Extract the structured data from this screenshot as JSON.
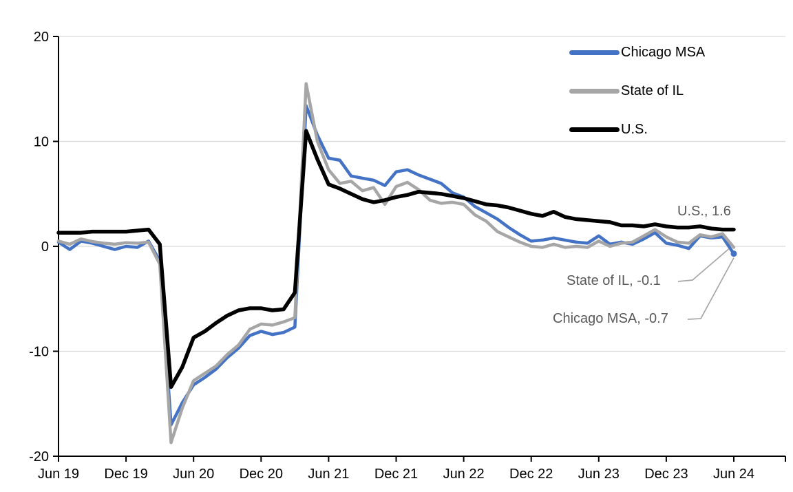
{
  "chart_data": {
    "type": "line",
    "title": "",
    "x_start_label": "Jun 19",
    "x_end_label": "Jun 24",
    "x_tick_labels": [
      "Jun 19",
      "Dec 19",
      "Jun 20",
      "Dec 20",
      "Jun 21",
      "Dec 21",
      "Jun 22",
      "Dec 22",
      "Jun 23",
      "Dec 23",
      "Jun 24"
    ],
    "points_per_tick": 6,
    "frequency": "monthly",
    "ylim": [
      -20,
      20
    ],
    "yticks": [
      20,
      10,
      0,
      -10,
      -20
    ],
    "grid_color": "#D9D9D9",
    "axis_color": "#000000",
    "annotation_color": "#595959",
    "leader_line_color": "#A6A6A6",
    "legend_position": "top-right-vertical",
    "series": [
      {
        "name": "Chicago MSA",
        "color": "#4472C4",
        "end_value": -0.7,
        "values": [
          0.4,
          -0.3,
          0.5,
          0.3,
          0.0,
          -0.3,
          0.0,
          -0.1,
          0.5,
          -1.4,
          -17.0,
          -14.9,
          -13.2,
          -12.5,
          -11.7,
          -10.6,
          -9.7,
          -8.5,
          -8.1,
          -8.4,
          -8.2,
          -7.7,
          13.4,
          10.6,
          8.4,
          8.2,
          6.7,
          6.5,
          6.3,
          5.8,
          7.1,
          7.3,
          6.8,
          6.4,
          6.0,
          5.1,
          4.7,
          3.8,
          3.2,
          2.6,
          1.8,
          1.1,
          0.5,
          0.6,
          0.8,
          0.6,
          0.4,
          0.3,
          1.0,
          0.2,
          0.4,
          0.2,
          0.7,
          1.3,
          0.3,
          0.1,
          -0.2,
          1.0,
          0.8,
          0.9,
          -0.7
        ]
      },
      {
        "name": "State of IL",
        "color": "#A6A6A6",
        "end_value": -0.1,
        "values": [
          0.5,
          0.2,
          0.7,
          0.45,
          0.3,
          0.2,
          0.35,
          0.3,
          0.4,
          -1.7,
          -18.7,
          -15.4,
          -12.8,
          -12.1,
          -11.4,
          -10.3,
          -9.4,
          -7.9,
          -7.4,
          -7.5,
          -7.2,
          -6.8,
          15.5,
          10.0,
          7.3,
          6.0,
          6.2,
          5.3,
          5.6,
          4.0,
          5.7,
          6.1,
          5.4,
          4.4,
          4.1,
          4.2,
          4.0,
          3.0,
          2.4,
          1.4,
          0.9,
          0.4,
          0.0,
          -0.1,
          0.2,
          -0.1,
          0.0,
          -0.1,
          0.5,
          0.0,
          0.3,
          0.4,
          1.0,
          1.6,
          0.9,
          0.4,
          0.3,
          1.1,
          0.9,
          1.2,
          -0.1
        ]
      },
      {
        "name": "U.S.",
        "color": "#000000",
        "end_value": 1.6,
        "values": [
          1.3,
          1.3,
          1.3,
          1.4,
          1.4,
          1.4,
          1.4,
          1.5,
          1.6,
          0.2,
          -13.4,
          -11.5,
          -8.7,
          -8.1,
          -7.3,
          -6.6,
          -6.1,
          -5.9,
          -5.9,
          -6.1,
          -6.0,
          -4.4,
          11.0,
          8.3,
          5.9,
          5.5,
          5.0,
          4.5,
          4.2,
          4.4,
          4.7,
          4.9,
          5.2,
          5.1,
          5.0,
          4.8,
          4.6,
          4.3,
          4.0,
          3.9,
          3.7,
          3.4,
          3.1,
          2.9,
          3.3,
          2.8,
          2.6,
          2.5,
          2.4,
          2.3,
          2.0,
          2.0,
          1.9,
          2.1,
          1.9,
          1.8,
          1.8,
          1.9,
          1.7,
          1.6,
          1.6
        ]
      }
    ],
    "annotations": [
      {
        "text": "U.S., 1.6",
        "series": "U.S.",
        "value": 1.6
      },
      {
        "text": "State of IL, -0.1",
        "series": "State of IL",
        "value": -0.1
      },
      {
        "text": "Chicago MSA, -0.7",
        "series": "Chicago MSA",
        "value": -0.7
      }
    ]
  }
}
